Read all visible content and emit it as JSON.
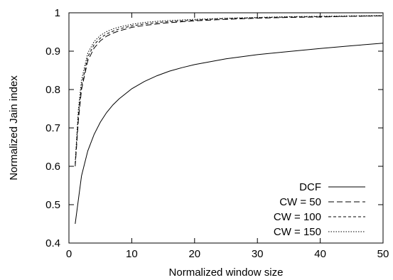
{
  "chart_data": {
    "type": "line",
    "title": "",
    "xlabel": "Normalized window size",
    "ylabel": "Normalized Jain index",
    "xlim": [
      0,
      50
    ],
    "ylim": [
      0.4,
      1.0
    ],
    "xticks": [
      0,
      10,
      20,
      30,
      40,
      50
    ],
    "yticks": [
      0.4,
      0.5,
      0.6,
      0.7,
      0.8,
      0.9,
      1.0
    ],
    "xtick_labels": [
      "0",
      "10",
      "20",
      "30",
      "40",
      "50"
    ],
    "ytick_labels": [
      "0.4",
      "0.5",
      "0.6",
      "0.7",
      "0.8",
      "0.9",
      "1"
    ],
    "grid": false,
    "legend_position": "bottom-right",
    "series": [
      {
        "name": "DCF",
        "dash": "solid",
        "x": [
          1,
          2,
          3,
          4,
          5,
          6,
          7,
          8,
          10,
          12,
          14,
          16,
          18,
          20,
          25,
          30,
          35,
          40,
          45,
          50
        ],
        "y": [
          0.45,
          0.575,
          0.64,
          0.683,
          0.715,
          0.74,
          0.76,
          0.776,
          0.802,
          0.821,
          0.836,
          0.848,
          0.857,
          0.865,
          0.88,
          0.891,
          0.899,
          0.907,
          0.914,
          0.921
        ]
      },
      {
        "name": "CW = 50",
        "dash": "long-dash",
        "x": [
          1,
          1.5,
          2,
          3,
          4,
          5,
          6,
          7,
          8,
          10,
          12,
          15,
          20,
          25,
          30,
          35,
          40,
          45,
          50
        ],
        "y": [
          0.6,
          0.72,
          0.8,
          0.875,
          0.908,
          0.927,
          0.939,
          0.947,
          0.953,
          0.962,
          0.967,
          0.973,
          0.979,
          0.983,
          0.986,
          0.988,
          0.989,
          0.991,
          0.992
        ]
      },
      {
        "name": "CW = 100",
        "dash": "short-dash",
        "x": [
          1,
          1.5,
          2,
          3,
          4,
          5,
          6,
          7,
          8,
          10,
          12,
          15,
          20,
          25,
          30,
          35,
          40,
          45,
          50
        ],
        "y": [
          0.605,
          0.735,
          0.81,
          0.885,
          0.917,
          0.934,
          0.945,
          0.952,
          0.958,
          0.966,
          0.971,
          0.976,
          0.981,
          0.985,
          0.987,
          0.989,
          0.99,
          0.991,
          0.992
        ]
      },
      {
        "name": "CW = 150",
        "dash": "dotted",
        "x": [
          1,
          1.5,
          2,
          3,
          4,
          5,
          6,
          7,
          8,
          10,
          12,
          15,
          20,
          25,
          30,
          35,
          40,
          45,
          50
        ],
        "y": [
          0.61,
          0.75,
          0.825,
          0.895,
          0.925,
          0.941,
          0.951,
          0.958,
          0.963,
          0.97,
          0.975,
          0.979,
          0.983,
          0.986,
          0.988,
          0.99,
          0.991,
          0.992,
          0.993
        ]
      }
    ]
  }
}
